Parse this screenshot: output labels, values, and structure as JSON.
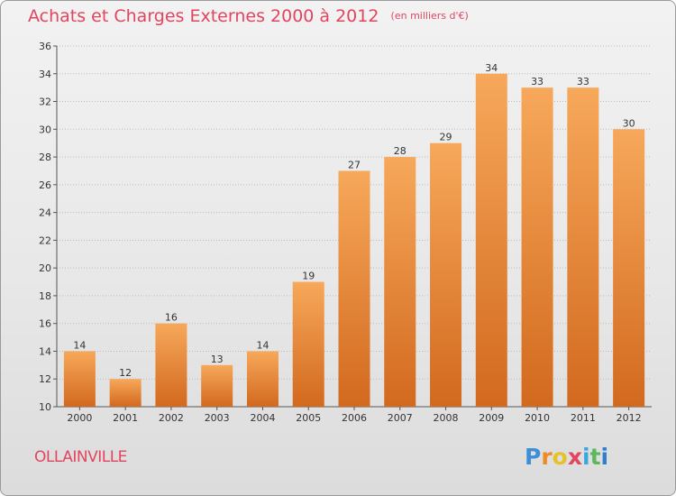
{
  "header": {
    "title": "Achats et Charges Externes 2000 à 2012",
    "unit": "(en milliers d'€)"
  },
  "footer": {
    "commune": "OLLAINVILLE",
    "logo_letters": [
      "P",
      "r",
      "o",
      "x",
      "i",
      "t",
      "i"
    ],
    "logo_colors": [
      "#3c8fd6",
      "#f08a24",
      "#e6c229",
      "#e2455f",
      "#3aa8e0",
      "#5cb85c",
      "#2f7fd0"
    ]
  },
  "colors": {
    "title": "#e2455f",
    "bar_top": "#f7a85a",
    "bar_bottom": "#d2691e",
    "grid": "#bbbbbb"
  },
  "chart_data": {
    "type": "bar",
    "title": "Achats et Charges Externes 2000 à 2012",
    "subtitle": "(en milliers d'€)",
    "xlabel": "",
    "ylabel": "",
    "categories": [
      "2000",
      "2001",
      "2002",
      "2003",
      "2004",
      "2005",
      "2006",
      "2007",
      "2008",
      "2009",
      "2010",
      "2011",
      "2012"
    ],
    "values": [
      14,
      12,
      16,
      13,
      14,
      19,
      27,
      28,
      29,
      34,
      33,
      33,
      30
    ],
    "ylim": [
      10,
      36
    ],
    "yticks": [
      "10",
      "12",
      "14",
      "16",
      "18",
      "20",
      "22",
      "24",
      "26",
      "28",
      "30",
      "32",
      "34",
      "36"
    ],
    "grid": true
  }
}
